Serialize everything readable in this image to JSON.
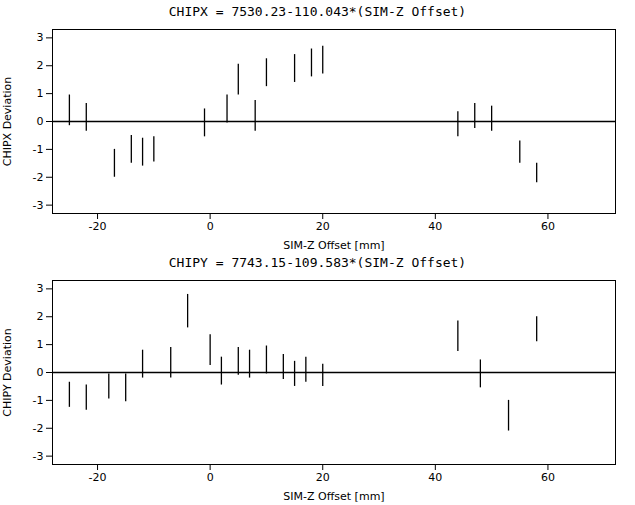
{
  "chart_data": [
    {
      "type": "errorbar",
      "title": "CHIPX = 7530.23-110.043*(SIM-Z Offset)",
      "x_label": "SIM-Z Offset [mm]",
      "y_label": "CHIPX Deviation",
      "x": [
        -25,
        -22,
        -17,
        -14,
        -12,
        -10,
        -1,
        3,
        5,
        8,
        10,
        15,
        18,
        20,
        44,
        47,
        50,
        55,
        58
      ],
      "values": [
        0.4,
        0.15,
        -1.5,
        -1.0,
        -1.1,
        -1.0,
        -0.05,
        0.45,
        1.5,
        0.2,
        1.75,
        1.9,
        2.1,
        2.2,
        -0.1,
        0.2,
        0.1,
        -1.1,
        -1.85
      ],
      "yerr": [
        0.55,
        0.5,
        0.5,
        0.5,
        0.5,
        0.45,
        0.5,
        0.5,
        0.55,
        0.55,
        0.5,
        0.5,
        0.5,
        0.5,
        0.45,
        0.45,
        0.45,
        0.4,
        0.35
      ],
      "hline": 0,
      "color": "#000000",
      "xlim": [
        -28,
        72
      ],
      "ylim": [
        -3.3,
        3.3
      ],
      "xticks": [
        -20,
        0,
        20,
        40,
        60
      ],
      "yticks": [
        -3,
        -2,
        -1,
        0,
        1,
        2,
        3
      ],
      "grid": false
    },
    {
      "type": "errorbar",
      "title": "CHIPY = 7743.15-109.583*(SIM-Z Offset)",
      "x_label": "SIM-Z Offset [mm]",
      "y_label": "CHIPY Deviation",
      "x": [
        -25,
        -22,
        -18,
        -15,
        -12,
        -7,
        -4,
        0,
        2,
        5,
        7,
        10,
        13,
        15,
        17,
        20,
        44,
        48,
        53,
        58
      ],
      "values": [
        -0.8,
        -0.9,
        -0.5,
        -0.55,
        0.3,
        0.35,
        2.2,
        0.8,
        0.05,
        0.4,
        0.3,
        0.45,
        0.2,
        -0.05,
        0.1,
        -0.1,
        1.3,
        -0.05,
        -1.55,
        1.55
      ],
      "yerr": [
        0.45,
        0.45,
        0.45,
        0.5,
        0.5,
        0.55,
        0.6,
        0.55,
        0.5,
        0.5,
        0.5,
        0.5,
        0.45,
        0.45,
        0.45,
        0.4,
        0.55,
        0.5,
        0.55,
        0.45
      ],
      "hline": 0,
      "color": "#000000",
      "xlim": [
        -28,
        72
      ],
      "ylim": [
        -3.3,
        3.3
      ],
      "xticks": [
        -20,
        0,
        20,
        40,
        60
      ],
      "yticks": [
        -3,
        -2,
        -1,
        0,
        1,
        2,
        3
      ],
      "grid": false
    }
  ]
}
